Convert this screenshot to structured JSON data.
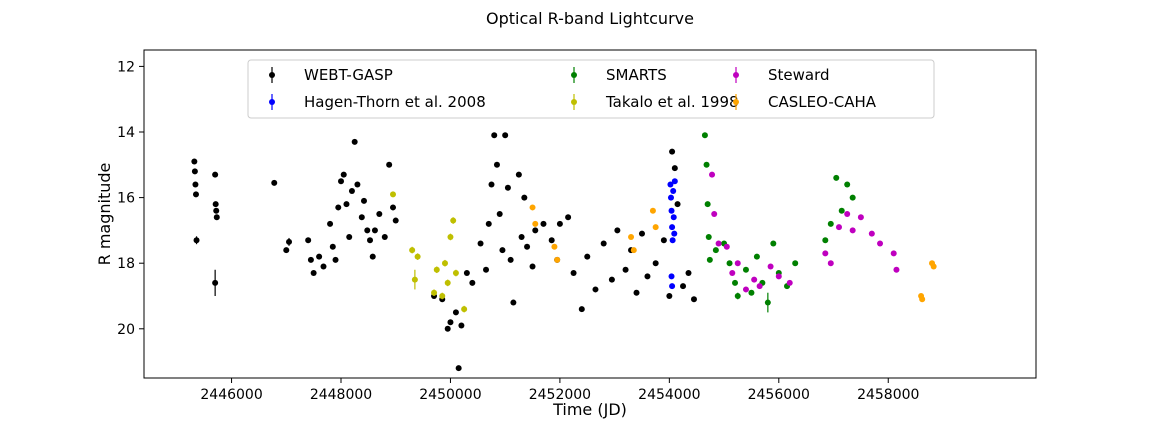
{
  "chart_data": {
    "type": "scatter",
    "title": "Optical R-band Lightcurve",
    "xlabel": "Time (JD)",
    "ylabel": "R magnitude",
    "xlim": [
      2444400,
      2460700
    ],
    "ylim": [
      21.5,
      11.5
    ],
    "y_inverted": true,
    "xticks": [
      2446000,
      2448000,
      2450000,
      2452000,
      2454000,
      2456000,
      2458000
    ],
    "xtick_labels": [
      "2446000",
      "2448000",
      "2450000",
      "2452000",
      "2454000",
      "2456000",
      "2458000"
    ],
    "yticks": [
      12,
      14,
      16,
      18,
      20
    ],
    "ytick_labels": [
      "12",
      "14",
      "16",
      "18",
      "20"
    ],
    "grid": false,
    "legend_position": "top",
    "series": [
      {
        "name": "WEBT-GASP",
        "color": "#000000",
        "points": [
          [
            2445320,
            14.9,
            0.05
          ],
          [
            2445330,
            15.2,
            0.05
          ],
          [
            2445340,
            15.6,
            0.05
          ],
          [
            2445350,
            15.9,
            0.05
          ],
          [
            2445360,
            17.3,
            0.12
          ],
          [
            2445700,
            15.3,
            0.05
          ],
          [
            2445710,
            16.2,
            0.05
          ],
          [
            2445720,
            16.4,
            0.05
          ],
          [
            2445730,
            16.6,
            0.05
          ],
          [
            2445700,
            18.6,
            0.4
          ],
          [
            2446780,
            15.55,
            0.05
          ],
          [
            2447050,
            17.35,
            0.12
          ],
          [
            2447000,
            17.6,
            0.05
          ],
          [
            2447400,
            17.3,
            0.05
          ],
          [
            2447450,
            17.9,
            0.05
          ],
          [
            2447500,
            18.3,
            0.05
          ],
          [
            2447600,
            17.8,
            0.05
          ],
          [
            2447680,
            18.1,
            0.05
          ],
          [
            2447800,
            16.8,
            0.05
          ],
          [
            2447850,
            17.5,
            0.05
          ],
          [
            2447900,
            17.9,
            0.05
          ],
          [
            2447950,
            16.3,
            0.05
          ],
          [
            2448000,
            15.5,
            0.05
          ],
          [
            2448050,
            15.3,
            0.05
          ],
          [
            2448100,
            16.2,
            0.05
          ],
          [
            2448150,
            17.2,
            0.05
          ],
          [
            2448200,
            15.8,
            0.05
          ],
          [
            2448250,
            14.3,
            0.05
          ],
          [
            2448300,
            15.6,
            0.05
          ],
          [
            2448380,
            16.6,
            0.05
          ],
          [
            2448420,
            16.1,
            0.05
          ],
          [
            2448480,
            17.0,
            0.05
          ],
          [
            2448530,
            17.3,
            0.05
          ],
          [
            2448580,
            17.8,
            0.05
          ],
          [
            2448620,
            17.0,
            0.05
          ],
          [
            2448700,
            16.5,
            0.05
          ],
          [
            2448800,
            17.2,
            0.05
          ],
          [
            2448880,
            15.0,
            0.05
          ],
          [
            2448950,
            16.3,
            0.05
          ],
          [
            2449000,
            16.7,
            0.05
          ],
          [
            2449700,
            19.0,
            0.05
          ],
          [
            2449850,
            19.1,
            0.05
          ],
          [
            2449950,
            20.0,
            0.05
          ],
          [
            2450000,
            19.8,
            0.05
          ],
          [
            2450100,
            19.5,
            0.05
          ],
          [
            2450150,
            21.2,
            0.05
          ],
          [
            2450200,
            19.9,
            0.05
          ],
          [
            2450300,
            18.3,
            0.05
          ],
          [
            2450400,
            18.6,
            0.05
          ],
          [
            2450550,
            17.4,
            0.05
          ],
          [
            2450650,
            18.2,
            0.05
          ],
          [
            2450700,
            16.8,
            0.05
          ],
          [
            2450750,
            15.6,
            0.05
          ],
          [
            2450800,
            14.1,
            0.05
          ],
          [
            2450850,
            15.0,
            0.05
          ],
          [
            2450900,
            16.5,
            0.05
          ],
          [
            2450950,
            17.6,
            0.05
          ],
          [
            2451000,
            14.1,
            0.05
          ],
          [
            2451050,
            15.7,
            0.05
          ],
          [
            2451100,
            17.9,
            0.05
          ],
          [
            2451150,
            19.2,
            0.05
          ],
          [
            2451250,
            15.3,
            0.05
          ],
          [
            2451300,
            17.2,
            0.05
          ],
          [
            2451350,
            16.0,
            0.05
          ],
          [
            2451400,
            17.5,
            0.05
          ],
          [
            2451500,
            18.1,
            0.05
          ],
          [
            2451550,
            17.0,
            0.05
          ],
          [
            2451700,
            16.8,
            0.05
          ],
          [
            2451850,
            17.3,
            0.05
          ],
          [
            2451950,
            17.9,
            0.05
          ],
          [
            2452000,
            16.8,
            0.05
          ],
          [
            2452150,
            16.6,
            0.05
          ],
          [
            2452250,
            18.3,
            0.05
          ],
          [
            2452400,
            19.4,
            0.05
          ],
          [
            2452500,
            17.8,
            0.05
          ],
          [
            2452650,
            18.8,
            0.05
          ],
          [
            2452800,
            17.4,
            0.05
          ],
          [
            2452950,
            18.5,
            0.05
          ],
          [
            2453050,
            17.0,
            0.05
          ],
          [
            2453200,
            18.2,
            0.05
          ],
          [
            2453300,
            17.6,
            0.05
          ],
          [
            2453400,
            18.9,
            0.05
          ],
          [
            2453500,
            17.1,
            0.05
          ],
          [
            2453600,
            18.4,
            0.05
          ],
          [
            2453750,
            18.0,
            0.05
          ],
          [
            2453900,
            17.3,
            0.05
          ],
          [
            2454000,
            19.0,
            0.05
          ],
          [
            2454050,
            14.6,
            0.05
          ],
          [
            2454100,
            15.1,
            0.05
          ],
          [
            2454150,
            16.2,
            0.05
          ],
          [
            2454250,
            18.7,
            0.05
          ],
          [
            2454350,
            18.3,
            0.05
          ],
          [
            2454450,
            19.1,
            0.05
          ]
        ]
      },
      {
        "name": "Hagen-Thorn et al. 2008",
        "color": "#0000ff",
        "points": [
          [
            2454020,
            15.6,
            0.05
          ],
          [
            2454030,
            16.0,
            0.05
          ],
          [
            2454040,
            16.4,
            0.05
          ],
          [
            2454050,
            16.9,
            0.05
          ],
          [
            2454060,
            17.3,
            0.05
          ],
          [
            2454070,
            15.8,
            0.05
          ],
          [
            2454080,
            16.6,
            0.05
          ],
          [
            2454090,
            17.1,
            0.05
          ],
          [
            2454100,
            15.5,
            0.05
          ],
          [
            2454040,
            18.4,
            0.05
          ],
          [
            2454050,
            18.7,
            0.05
          ]
        ]
      },
      {
        "name": "SMARTS",
        "color": "#008000",
        "points": [
          [
            2454650,
            14.1,
            0.05
          ],
          [
            2454680,
            15.0,
            0.05
          ],
          [
            2454700,
            16.2,
            0.05
          ],
          [
            2454720,
            17.2,
            0.05
          ],
          [
            2454740,
            17.9,
            0.05
          ],
          [
            2454850,
            17.6,
            0.05
          ],
          [
            2455000,
            17.4,
            0.05
          ],
          [
            2455100,
            18.0,
            0.05
          ],
          [
            2455200,
            18.6,
            0.05
          ],
          [
            2455250,
            19.0,
            0.1
          ],
          [
            2455400,
            18.2,
            0.05
          ],
          [
            2455500,
            18.9,
            0.05
          ],
          [
            2455600,
            17.8,
            0.05
          ],
          [
            2455700,
            18.6,
            0.05
          ],
          [
            2455800,
            19.2,
            0.3
          ],
          [
            2455900,
            17.4,
            0.05
          ],
          [
            2456000,
            18.3,
            0.05
          ],
          [
            2456150,
            18.7,
            0.05
          ],
          [
            2456300,
            18.0,
            0.05
          ],
          [
            2456850,
            17.3,
            0.05
          ],
          [
            2456950,
            16.8,
            0.05
          ],
          [
            2457050,
            15.4,
            0.05
          ],
          [
            2457150,
            16.4,
            0.05
          ],
          [
            2457250,
            15.6,
            0.05
          ],
          [
            2457350,
            16.0,
            0.05
          ]
        ]
      },
      {
        "name": "Takalo et al. 1998",
        "color": "#bfbf00",
        "points": [
          [
            2448950,
            15.9,
            0.05
          ],
          [
            2449300,
            17.6,
            0.1
          ],
          [
            2449350,
            18.5,
            0.3
          ],
          [
            2449400,
            17.8,
            0.1
          ],
          [
            2449700,
            18.9,
            0.1
          ],
          [
            2449750,
            18.2,
            0.1
          ],
          [
            2449850,
            19.0,
            0.1
          ],
          [
            2449900,
            18.0,
            0.1
          ],
          [
            2449950,
            18.6,
            0.1
          ],
          [
            2450000,
            17.2,
            0.1
          ],
          [
            2450050,
            16.7,
            0.1
          ],
          [
            2450100,
            18.3,
            0.1
          ],
          [
            2450250,
            19.4,
            0.1
          ]
        ]
      },
      {
        "name": "Steward",
        "color": "#bf00bf",
        "points": [
          [
            2454780,
            15.3,
            0.05
          ],
          [
            2454820,
            16.5,
            0.05
          ],
          [
            2454900,
            17.4,
            0.05
          ],
          [
            2455050,
            17.5,
            0.05
          ],
          [
            2455150,
            18.3,
            0.05
          ],
          [
            2455250,
            18.0,
            0.05
          ],
          [
            2455400,
            18.8,
            0.05
          ],
          [
            2455550,
            18.5,
            0.05
          ],
          [
            2455650,
            18.7,
            0.05
          ],
          [
            2455850,
            18.1,
            0.05
          ],
          [
            2456000,
            18.4,
            0.05
          ],
          [
            2456200,
            18.6,
            0.05
          ],
          [
            2456850,
            17.7,
            0.05
          ],
          [
            2456950,
            18.0,
            0.05
          ],
          [
            2457100,
            16.9,
            0.05
          ],
          [
            2457250,
            16.5,
            0.05
          ],
          [
            2457350,
            17.0,
            0.05
          ],
          [
            2457500,
            16.6,
            0.05
          ],
          [
            2457700,
            17.1,
            0.05
          ],
          [
            2457850,
            17.4,
            0.05
          ],
          [
            2458100,
            17.7,
            0.05
          ],
          [
            2458150,
            18.2,
            0.05
          ]
        ]
      },
      {
        "name": "CASLEO-CAHA",
        "color": "#ffa500",
        "points": [
          [
            2451500,
            16.3,
            0.05
          ],
          [
            2451550,
            16.8,
            0.05
          ],
          [
            2451900,
            17.5,
            0.05
          ],
          [
            2451950,
            17.9,
            0.05
          ],
          [
            2453300,
            17.2,
            0.05
          ],
          [
            2453350,
            17.6,
            0.05
          ],
          [
            2453700,
            16.4,
            0.05
          ],
          [
            2453750,
            16.9,
            0.05
          ],
          [
            2458600,
            19.0,
            0.05
          ],
          [
            2458620,
            19.1,
            0.05
          ],
          [
            2458800,
            18.0,
            0.05
          ],
          [
            2458830,
            18.1,
            0.05
          ]
        ]
      }
    ]
  }
}
